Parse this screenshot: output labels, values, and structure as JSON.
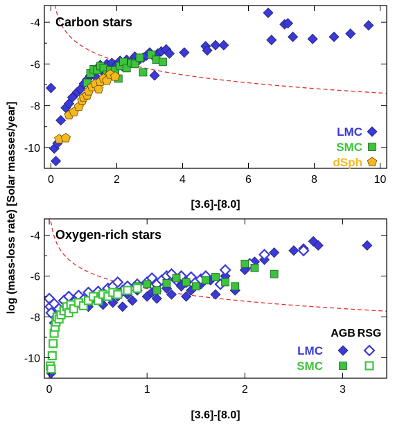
{
  "chart_data": [
    {
      "type": "scatter",
      "title": "Carbon stars",
      "xlabel": "[3.6]-[8.0]",
      "ylabel": "log (mass-loss rate) [Solar masses/year]",
      "xlim": [
        -0.2,
        10.2
      ],
      "ylim": [
        -11.0,
        -3.2
      ],
      "xticks": [
        0,
        2,
        4,
        6,
        8,
        10
      ],
      "yticks": [
        -10,
        -8,
        -6,
        -4
      ],
      "grid": false,
      "legend_position": "bottom-right",
      "legend": [
        {
          "label": "LMC",
          "color": "#3a3ad8",
          "marker": "diamond"
        },
        {
          "label": "SMC",
          "color": "#3cc43c",
          "marker": "square"
        },
        {
          "label": "dSph",
          "color": "#f5b820",
          "marker": "pentagon"
        }
      ],
      "series": [
        {
          "name": "LMC",
          "color": "#3a3ad8",
          "marker": "diamond",
          "filled": true,
          "points": [
            [
              0.0,
              -7.15
            ],
            [
              0.1,
              -10.05
            ],
            [
              0.15,
              -10.65
            ],
            [
              0.2,
              -9.8
            ],
            [
              0.3,
              -8.7
            ],
            [
              0.45,
              -8.1
            ],
            [
              0.55,
              -7.9
            ],
            [
              0.65,
              -7.6
            ],
            [
              0.8,
              -7.35
            ],
            [
              0.9,
              -7.2
            ],
            [
              1.0,
              -6.95
            ],
            [
              1.1,
              -6.75
            ],
            [
              1.2,
              -6.55
            ],
            [
              1.3,
              -6.35
            ],
            [
              1.35,
              -6.6
            ],
            [
              1.5,
              -6.05
            ],
            [
              1.6,
              -6.4
            ],
            [
              1.7,
              -6.0
            ],
            [
              1.85,
              -5.95
            ],
            [
              1.9,
              -6.25
            ],
            [
              2.0,
              -6.05
            ],
            [
              2.1,
              -5.85
            ],
            [
              2.2,
              -6.15
            ],
            [
              2.3,
              -5.8
            ],
            [
              2.45,
              -5.9
            ],
            [
              2.55,
              -5.65
            ],
            [
              2.65,
              -5.85
            ],
            [
              2.8,
              -5.7
            ],
            [
              2.9,
              -5.6
            ],
            [
              3.0,
              -5.45
            ],
            [
              3.1,
              -5.6
            ],
            [
              3.15,
              -6.55
            ],
            [
              3.25,
              -5.5
            ],
            [
              3.35,
              -5.4
            ],
            [
              3.5,
              -5.3
            ],
            [
              3.6,
              -5.5
            ],
            [
              4.05,
              -5.45
            ],
            [
              4.7,
              -5.15
            ],
            [
              4.75,
              -5.35
            ],
            [
              5.0,
              -5.1
            ],
            [
              5.25,
              -5.1
            ],
            [
              6.6,
              -3.55
            ],
            [
              6.7,
              -4.85
            ],
            [
              7.1,
              -4.1
            ],
            [
              7.2,
              -4.05
            ],
            [
              7.35,
              -4.7
            ],
            [
              7.95,
              -4.8
            ],
            [
              8.6,
              -4.7
            ],
            [
              9.1,
              -4.55
            ],
            [
              9.65,
              -4.15
            ]
          ]
        },
        {
          "name": "SMC",
          "color": "#3cc43c",
          "marker": "square",
          "filled": true,
          "points": [
            [
              1.1,
              -6.9
            ],
            [
              1.2,
              -6.45
            ],
            [
              1.3,
              -6.25
            ],
            [
              1.4,
              -6.3
            ],
            [
              1.5,
              -6.1
            ],
            [
              1.6,
              -6.2
            ],
            [
              1.7,
              -6.5
            ],
            [
              1.8,
              -6.3
            ],
            [
              1.95,
              -6.3
            ],
            [
              2.05,
              -6.7
            ],
            [
              2.1,
              -6.1
            ],
            [
              2.2,
              -5.9
            ],
            [
              2.3,
              -6.2
            ],
            [
              2.45,
              -5.95
            ],
            [
              2.55,
              -6.0
            ],
            [
              2.7,
              -5.7
            ],
            [
              2.8,
              -6.4
            ],
            [
              3.05,
              -5.55
            ],
            [
              3.2,
              -5.8
            ],
            [
              3.4,
              -5.9
            ]
          ]
        },
        {
          "name": "dSph",
          "color": "#f5b820",
          "marker": "pentagon",
          "filled": true,
          "points": [
            [
              0.25,
              -9.6
            ],
            [
              0.45,
              -9.55
            ],
            [
              0.55,
              -8.45
            ],
            [
              0.7,
              -8.3
            ],
            [
              0.85,
              -8.05
            ],
            [
              0.95,
              -7.75
            ],
            [
              1.0,
              -7.6
            ],
            [
              1.1,
              -7.5
            ],
            [
              1.15,
              -7.3
            ],
            [
              1.25,
              -7.1
            ],
            [
              1.35,
              -6.95
            ],
            [
              1.45,
              -7.2
            ],
            [
              1.5,
              -6.85
            ],
            [
              1.6,
              -6.7
            ],
            [
              1.7,
              -6.8
            ],
            [
              1.8,
              -6.5
            ],
            [
              1.95,
              -6.6
            ]
          ]
        }
      ],
      "fit_line": {
        "style": "dashed",
        "color": "#e03030"
      }
    },
    {
      "type": "scatter",
      "title": "Oxygen-rich stars",
      "xlabel": "[3.6]-[8.0]",
      "ylabel": "log (mass-loss rate) [Solar masses/year]",
      "xlim": [
        -0.05,
        3.45
      ],
      "ylim": [
        -11.0,
        -3.2
      ],
      "xticks": [
        0,
        1,
        2,
        3
      ],
      "yticks": [
        -10,
        -8,
        -6,
        -4
      ],
      "grid": false,
      "legend_position": "bottom-right",
      "legend_headers": [
        "AGB",
        "RSG"
      ],
      "legend": [
        {
          "label": "LMC",
          "color": "#3a3ad8",
          "agb_marker": "diamond",
          "rsg_marker": "open-diamond"
        },
        {
          "label": "SMC",
          "color": "#3cc43c",
          "agb_marker": "square",
          "rsg_marker": "open-square"
        }
      ],
      "series": [
        {
          "name": "LMC AGB",
          "color": "#3a3ad8",
          "marker": "diamond",
          "filled": true,
          "points": [
            [
              0.02,
              -10.75
            ],
            [
              0.05,
              -8.3
            ],
            [
              0.1,
              -8.0
            ],
            [
              0.15,
              -7.7
            ],
            [
              0.2,
              -7.4
            ],
            [
              0.3,
              -7.3
            ],
            [
              0.4,
              -7.5
            ],
            [
              0.5,
              -7.1
            ],
            [
              0.55,
              -7.4
            ],
            [
              0.65,
              -7.3
            ],
            [
              0.7,
              -7.0
            ],
            [
              0.75,
              -7.5
            ],
            [
              0.8,
              -6.9
            ],
            [
              0.85,
              -7.2
            ],
            [
              0.9,
              -6.7
            ],
            [
              1.0,
              -7.0
            ],
            [
              1.05,
              -6.8
            ],
            [
              1.1,
              -7.1
            ],
            [
              1.2,
              -6.6
            ],
            [
              1.25,
              -6.9
            ],
            [
              1.35,
              -6.5
            ],
            [
              1.45,
              -6.7
            ],
            [
              1.55,
              -6.4
            ],
            [
              1.65,
              -6.2
            ],
            [
              1.7,
              -6.9
            ],
            [
              1.8,
              -6.0
            ],
            [
              1.9,
              -6.7
            ],
            [
              2.0,
              -5.7
            ],
            [
              2.1,
              -5.3
            ],
            [
              2.2,
              -5.2
            ],
            [
              2.3,
              -4.85
            ],
            [
              2.5,
              -4.75
            ],
            [
              2.6,
              -4.65
            ],
            [
              2.7,
              -4.3
            ],
            [
              2.75,
              -4.5
            ],
            [
              3.25,
              -4.5
            ],
            [
              1.4,
              -7.0
            ]
          ]
        },
        {
          "name": "LMC RSG",
          "color": "#3a3ad8",
          "marker": "open-diamond",
          "filled": false,
          "points": [
            [
              0.0,
              -7.1
            ],
            [
              0.01,
              -7.5
            ],
            [
              0.02,
              -7.8
            ],
            [
              0.05,
              -7.35
            ],
            [
              0.1,
              -7.6
            ],
            [
              0.15,
              -7.2
            ],
            [
              0.2,
              -7.0
            ],
            [
              0.25,
              -7.3
            ],
            [
              0.3,
              -6.95
            ],
            [
              0.35,
              -7.15
            ],
            [
              0.4,
              -6.8
            ],
            [
              0.45,
              -7.05
            ],
            [
              0.5,
              -6.75
            ],
            [
              0.55,
              -6.9
            ],
            [
              0.6,
              -6.6
            ],
            [
              0.65,
              -6.5
            ],
            [
              0.7,
              -6.3
            ],
            [
              0.75,
              -6.7
            ],
            [
              0.8,
              -6.5
            ],
            [
              0.9,
              -6.4
            ],
            [
              1.0,
              -6.3
            ],
            [
              1.05,
              -6.1
            ],
            [
              1.1,
              -6.4
            ],
            [
              1.15,
              -6.2
            ],
            [
              1.2,
              -6.0
            ],
            [
              1.25,
              -5.9
            ],
            [
              1.3,
              -6.2
            ],
            [
              1.35,
              -6.0
            ],
            [
              1.4,
              -6.3
            ],
            [
              1.45,
              -6.05
            ],
            [
              1.55,
              -6.15
            ],
            [
              1.6,
              -6.0
            ],
            [
              1.75,
              -6.4
            ],
            [
              1.8,
              -5.7
            ],
            [
              2.05,
              -5.4
            ],
            [
              2.2,
              -4.95
            ],
            [
              2.6,
              -4.75
            ]
          ]
        },
        {
          "name": "SMC AGB",
          "color": "#3cc43c",
          "marker": "square",
          "filled": true,
          "points": [
            [
              0.5,
              -7.0
            ],
            [
              0.7,
              -6.8
            ],
            [
              0.9,
              -6.5
            ],
            [
              1.0,
              -6.4
            ],
            [
              1.1,
              -6.7
            ],
            [
              1.2,
              -6.35
            ],
            [
              1.3,
              -6.1
            ],
            [
              1.4,
              -6.3
            ],
            [
              1.5,
              -6.5
            ],
            [
              1.6,
              -6.2
            ],
            [
              1.7,
              -6.05
            ],
            [
              1.8,
              -6.3
            ],
            [
              1.9,
              -6.5
            ],
            [
              2.0,
              -5.4
            ],
            [
              2.1,
              -5.6
            ],
            [
              2.3,
              -5.9
            ]
          ]
        },
        {
          "name": "SMC RSG",
          "color": "#3cc43c",
          "marker": "open-square",
          "filled": false,
          "points": [
            [
              0.01,
              -10.4
            ],
            [
              0.02,
              -10.55
            ],
            [
              0.03,
              -9.9
            ],
            [
              0.04,
              -9.3
            ],
            [
              0.05,
              -8.8
            ],
            [
              0.06,
              -8.5
            ],
            [
              0.07,
              -8.25
            ],
            [
              0.08,
              -8.0
            ],
            [
              0.1,
              -8.1
            ],
            [
              0.12,
              -7.9
            ],
            [
              0.15,
              -7.7
            ],
            [
              0.18,
              -7.5
            ],
            [
              0.2,
              -7.8
            ],
            [
              0.22,
              -7.4
            ],
            [
              0.25,
              -7.6
            ],
            [
              0.3,
              -7.3
            ],
            [
              0.35,
              -7.45
            ],
            [
              0.4,
              -7.2
            ],
            [
              0.45,
              -7.0
            ],
            [
              0.5,
              -7.2
            ],
            [
              0.55,
              -6.9
            ],
            [
              0.6,
              -7.0
            ],
            [
              0.65,
              -6.8
            ],
            [
              0.7,
              -6.9
            ],
            [
              0.8,
              -6.7
            ],
            [
              0.9,
              -6.6
            ]
          ]
        }
      ],
      "fit_line": {
        "style": "dashed",
        "color": "#e03030"
      }
    }
  ]
}
